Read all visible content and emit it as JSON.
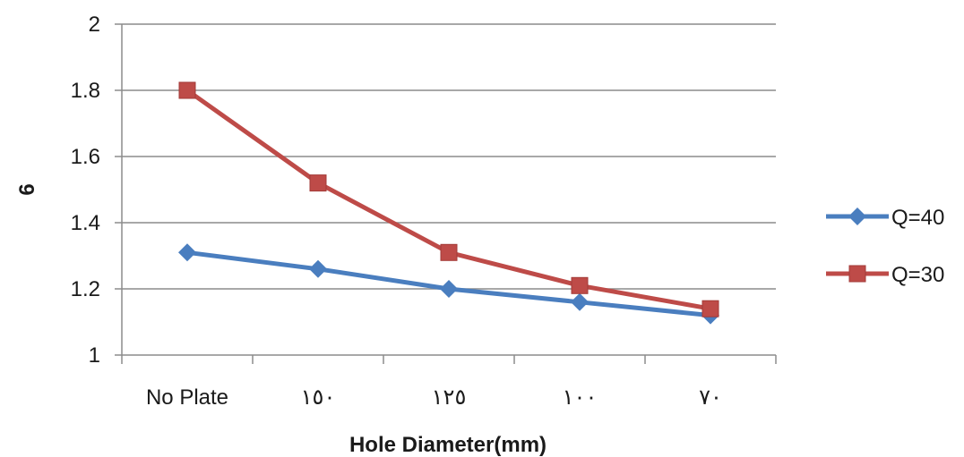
{
  "chart_data": {
    "type": "line",
    "categories": [
      "No Plate",
      "١٥٠",
      "١٢٥",
      "١٠٠",
      "٧٠"
    ],
    "series": [
      {
        "name": "Q=40",
        "values": [
          1.31,
          1.26,
          1.2,
          1.16,
          1.12
        ],
        "color": "#4a7ebf",
        "marker": "diamond"
      },
      {
        "name": "Q=30",
        "values": [
          1.8,
          1.52,
          1.31,
          1.21,
          1.14
        ],
        "color": "#be4b48",
        "marker": "square"
      }
    ],
    "title": "",
    "xlabel": "Hole Diameter(mm)",
    "ylabel": "6",
    "ylim": [
      1,
      2
    ],
    "yticks": [
      "1",
      "1.2",
      "1.4",
      "1.6",
      "1.8",
      "2"
    ],
    "grid": true,
    "legend_position": "right"
  }
}
